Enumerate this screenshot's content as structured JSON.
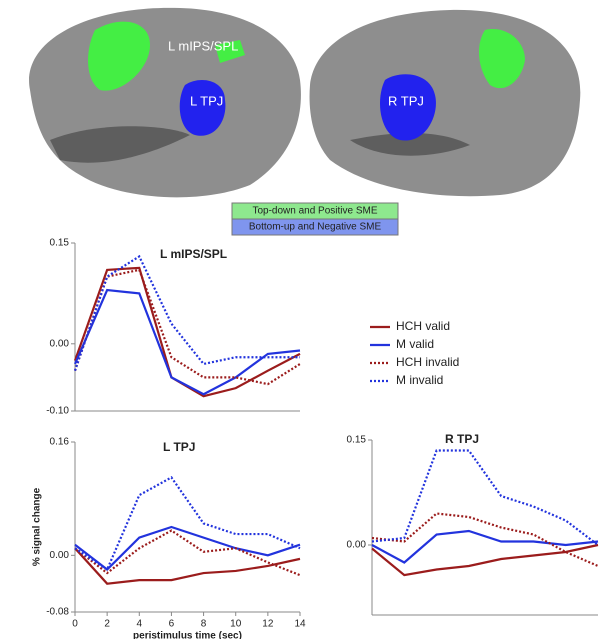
{
  "brain": {
    "labels": [
      "L mIPS/SPL",
      "L TPJ",
      "R TPJ"
    ],
    "legend": [
      "Top-down and Positive SME",
      "Bottom-up and Negative SME"
    ]
  },
  "chart_data": [
    {
      "type": "line",
      "title": "L mIPS/SPL",
      "x": [
        0,
        2,
        4,
        6,
        8,
        10,
        12,
        14
      ],
      "xlim": [
        0,
        14
      ],
      "ylim": [
        -0.1,
        0.15
      ],
      "yticks": [
        0.15,
        {
          "value": 0,
          "label": "0.00"
        },
        {
          "value": -0.1,
          "label": "-0.10"
        }
      ],
      "series": [
        {
          "name": "HCH valid",
          "color": "#9b1c1c",
          "style": "solid",
          "values": [
            -0.025,
            0.11,
            0.113,
            -0.05,
            -0.078,
            -0.066,
            -0.04,
            -0.015
          ]
        },
        {
          "name": "M valid",
          "color": "#2233dd",
          "style": "solid",
          "values": [
            -0.03,
            0.08,
            0.075,
            -0.05,
            -0.075,
            -0.05,
            -0.015,
            -0.01
          ]
        },
        {
          "name": "HCH invalid",
          "color": "#9b1c1c",
          "style": "dotted",
          "values": [
            -0.04,
            0.1,
            0.11,
            -0.02,
            -0.05,
            -0.05,
            -0.06,
            -0.03
          ]
        },
        {
          "name": "M invalid",
          "color": "#2233dd",
          "style": "dotted",
          "values": [
            -0.04,
            0.1,
            0.13,
            0.03,
            -0.03,
            -0.02,
            -0.02,
            -0.02
          ]
        }
      ]
    },
    {
      "type": "line",
      "title": "L TPJ",
      "x": [
        0,
        2,
        4,
        6,
        8,
        10,
        12,
        14
      ],
      "xlim": [
        0,
        14
      ],
      "xticks": [
        0,
        2,
        4,
        6,
        8,
        10,
        12,
        14
      ],
      "xlabel": "peristimulus time (sec)",
      "ylabel": "% signal change",
      "ylim": [
        -0.08,
        0.16
      ],
      "yticks": [
        0.16,
        {
          "value": 0,
          "label": "0.00"
        },
        {
          "value": -0.08,
          "label": "-0.08"
        }
      ],
      "series": [
        {
          "color": "#9b1c1c",
          "style": "solid",
          "values": [
            0.01,
            -0.04,
            -0.035,
            -0.035,
            -0.025,
            -0.022,
            -0.015,
            -0.005
          ]
        },
        {
          "color": "#2233dd",
          "style": "solid",
          "values": [
            0.015,
            -0.02,
            0.025,
            0.04,
            0.025,
            0.01,
            0.0,
            0.015
          ]
        },
        {
          "color": "#9b1c1c",
          "style": "dotted",
          "values": [
            0.01,
            -0.025,
            0.01,
            0.035,
            0.005,
            0.01,
            -0.01,
            -0.028
          ]
        },
        {
          "color": "#2233dd",
          "style": "dotted",
          "values": [
            0.01,
            -0.02,
            0.085,
            0.11,
            0.045,
            0.03,
            0.03,
            0.01
          ]
        }
      ]
    },
    {
      "type": "line",
      "title": "R TPJ",
      "x": [
        0,
        2,
        4,
        6,
        8,
        10,
        12,
        14
      ],
      "xlim": [
        0,
        14
      ],
      "ylim": [
        -0.1,
        0.15
      ],
      "yticks": [
        0.15,
        {
          "value": 0,
          "label": "0.00"
        }
      ],
      "series": [
        {
          "color": "#9b1c1c",
          "style": "solid",
          "values": [
            -0.005,
            -0.043,
            -0.035,
            -0.03,
            -0.02,
            -0.015,
            -0.01,
            0.0
          ]
        },
        {
          "color": "#2233dd",
          "style": "solid",
          "values": [
            0.0,
            -0.025,
            0.015,
            0.02,
            0.005,
            0.005,
            0.0,
            0.005
          ]
        },
        {
          "color": "#9b1c1c",
          "style": "dotted",
          "values": [
            0.01,
            0.005,
            0.045,
            0.04,
            0.025,
            0.015,
            -0.01,
            -0.03
          ]
        },
        {
          "color": "#2233dd",
          "style": "dotted",
          "values": [
            0.005,
            0.01,
            0.135,
            0.135,
            0.07,
            0.055,
            0.035,
            0.0
          ]
        }
      ]
    }
  ]
}
